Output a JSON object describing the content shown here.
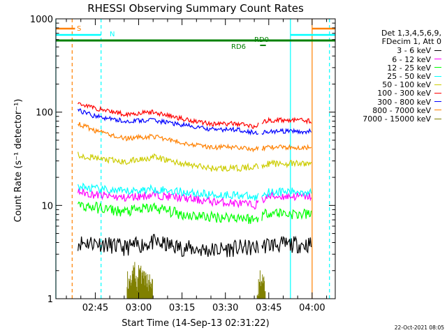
{
  "chart_data": {
    "type": "line",
    "title": "RHESSI Observing Summary Count Rates",
    "xlabel": "Start Time (14-Sep-13 02:31:22)",
    "ylabel": "Count Rate (s⁻¹ detector⁻¹)",
    "ylim": [
      1,
      1000
    ],
    "yscale": "log",
    "xlim": [
      "02:31:22",
      "04:08:00"
    ],
    "xticks": [
      "02:45",
      "03:00",
      "03:15",
      "03:30",
      "03:45",
      "04:00"
    ],
    "yticks": [
      "1",
      "10",
      "100",
      "1000"
    ],
    "legend_header": [
      "Det 1,3,4,5,6,9,",
      "FDecim 1, Att 0"
    ],
    "legend_position": "right",
    "series": [
      {
        "name": "3 - 6 keV",
        "color": "#000000",
        "x": [
          "02:39",
          "02:45",
          "02:55",
          "03:05",
          "03:15",
          "03:25",
          "03:35",
          "03:40",
          "03:45",
          "03:55",
          "04:00"
        ],
        "values": [
          4.0,
          4.0,
          3.5,
          4.0,
          3.5,
          3.3,
          3.5,
          3.5,
          3.8,
          3.8,
          3.8
        ]
      },
      {
        "name": "6 - 12 keV",
        "color": "#ff00ff",
        "x": [
          "02:39",
          "02:45",
          "02:55",
          "03:05",
          "03:15",
          "03:25",
          "03:35",
          "03:40",
          "03:45",
          "03:55",
          "04:00"
        ],
        "values": [
          14,
          13,
          12,
          13,
          12,
          11,
          10.5,
          10,
          12.5,
          12.5,
          12.5
        ]
      },
      {
        "name": "12 - 25 keV",
        "color": "#00ff00",
        "x": [
          "02:39",
          "02:45",
          "02:55",
          "03:05",
          "03:15",
          "03:25",
          "03:35",
          "03:40",
          "03:45",
          "03:55",
          "04:00"
        ],
        "values": [
          10,
          9.5,
          8.5,
          9.5,
          8,
          7.5,
          7.5,
          7,
          8.5,
          8,
          8
        ]
      },
      {
        "name": "25 - 50 keV",
        "color": "#00ffff",
        "x": [
          "02:39",
          "02:45",
          "02:55",
          "03:05",
          "03:15",
          "03:25",
          "03:35",
          "03:40",
          "03:45",
          "03:55",
          "04:00"
        ],
        "values": [
          16,
          15,
          14,
          15,
          14,
          13,
          13,
          12,
          14,
          14,
          14
        ]
      },
      {
        "name": "50 - 100 keV",
        "color": "#cccc00",
        "x": [
          "02:39",
          "02:45",
          "02:55",
          "03:05",
          "03:15",
          "03:25",
          "03:35",
          "03:40",
          "03:45",
          "03:55",
          "04:00"
        ],
        "values": [
          35,
          32,
          29,
          33,
          28,
          25,
          25,
          26,
          28,
          28,
          28
        ]
      },
      {
        "name": "100 - 300 keV",
        "color": "#ff0000",
        "x": [
          "02:39",
          "02:45",
          "02:55",
          "03:05",
          "03:15",
          "03:25",
          "03:35",
          "03:40",
          "03:45",
          "03:55",
          "04:00"
        ],
        "values": [
          125,
          110,
          95,
          100,
          85,
          75,
          75,
          70,
          82,
          82,
          80
        ]
      },
      {
        "name": "300 - 800 keV",
        "color": "#0000ff",
        "x": [
          "02:39",
          "02:45",
          "02:55",
          "03:05",
          "03:15",
          "03:25",
          "03:35",
          "03:40",
          "03:45",
          "03:55",
          "04:00"
        ],
        "values": [
          105,
          90,
          80,
          82,
          73,
          65,
          65,
          60,
          62,
          62,
          62
        ]
      },
      {
        "name": "800 - 7000 keV",
        "color": "#ff8000",
        "x": [
          "02:39",
          "02:45",
          "02:55",
          "03:05",
          "03:15",
          "03:25",
          "03:35",
          "03:40",
          "03:45",
          "03:55",
          "04:00"
        ],
        "values": [
          75,
          63,
          52,
          55,
          47,
          42,
          42,
          40,
          42,
          42,
          42
        ]
      },
      {
        "name": "7000 - 15000 keV",
        "color": "#808000",
        "x": [
          "02:56",
          "02:57",
          "02:58",
          "02:59",
          "03:00",
          "03:01",
          "03:02",
          "03:03",
          "03:04",
          "03:41",
          "03:42",
          "03:43"
        ],
        "values": [
          1.6,
          1.8,
          2.0,
          1.5,
          2.0,
          1.7,
          1.8,
          1.6,
          1.5,
          1.3,
          1.7,
          1.5
        ]
      }
    ],
    "state_bars": [
      {
        "label": "S",
        "color": "#ff8000"
      },
      {
        "label": "N",
        "color": "#00ffff"
      },
      {
        "label": "RD0",
        "color": "#008000"
      },
      {
        "label": "RD6",
        "color": "#008000"
      }
    ],
    "vertical_markers": [
      {
        "time": "02:31:22",
        "color": "#00ffff",
        "style": "solid"
      },
      {
        "time": "02:37:00",
        "color": "#ff8000",
        "style": "dashed"
      },
      {
        "time": "02:47:00",
        "color": "#00ffff",
        "style": "dashed"
      },
      {
        "time": "03:52:30",
        "color": "#00ffff",
        "style": "solid"
      },
      {
        "time": "04:00:00",
        "color": "#ff8000",
        "style": "solid"
      },
      {
        "time": "04:06:00",
        "color": "#00ffff",
        "style": "dashed"
      }
    ]
  },
  "timestamp": "22-Oct-2021 08:05"
}
